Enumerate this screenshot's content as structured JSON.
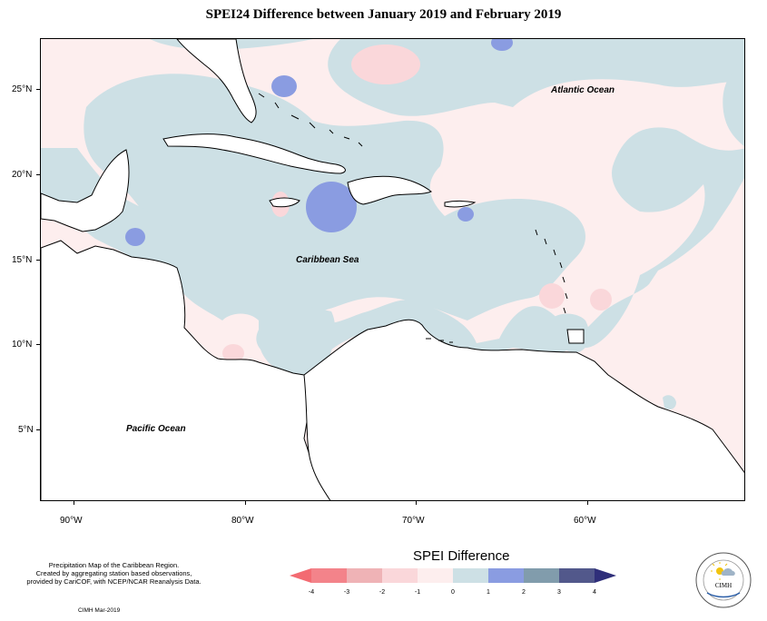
{
  "title": "SPEI24 Difference between January 2019 and February 2019",
  "map": {
    "labels": {
      "atlantic": "Atlantic Ocean",
      "caribbean": "Caribbean Sea",
      "pacific": "Pacific Ocean"
    },
    "lat_ticks": [
      "25°N",
      "20°N",
      "15°N",
      "10°N",
      "5°N"
    ],
    "lon_ticks": [
      "90°W",
      "80°W",
      "70°W",
      "60°W"
    ]
  },
  "legend": {
    "title": "SPEI Difference",
    "ticks": [
      "-4",
      "-3",
      "-2",
      "-1",
      "0",
      "1",
      "2",
      "3",
      "4"
    ],
    "colors": [
      "#f3838a",
      "#efb3b6",
      "#fad7da",
      "#fdeeee",
      "#cde0e5",
      "#8a9ce1",
      "#819cac",
      "#52588b"
    ],
    "arrow_left_color": "#f36b72",
    "arrow_right_color": "#2f2f7a"
  },
  "credits": {
    "lines": [
      "Precipitation Map of the Caribbean Region.",
      "Created by aggregating station based observations,",
      "provided by CariCOF, with NCEP/NCAR Reanalysis Data."
    ],
    "date": "CIMH Mar-2019"
  },
  "logo": {
    "name": "CIMH"
  }
}
